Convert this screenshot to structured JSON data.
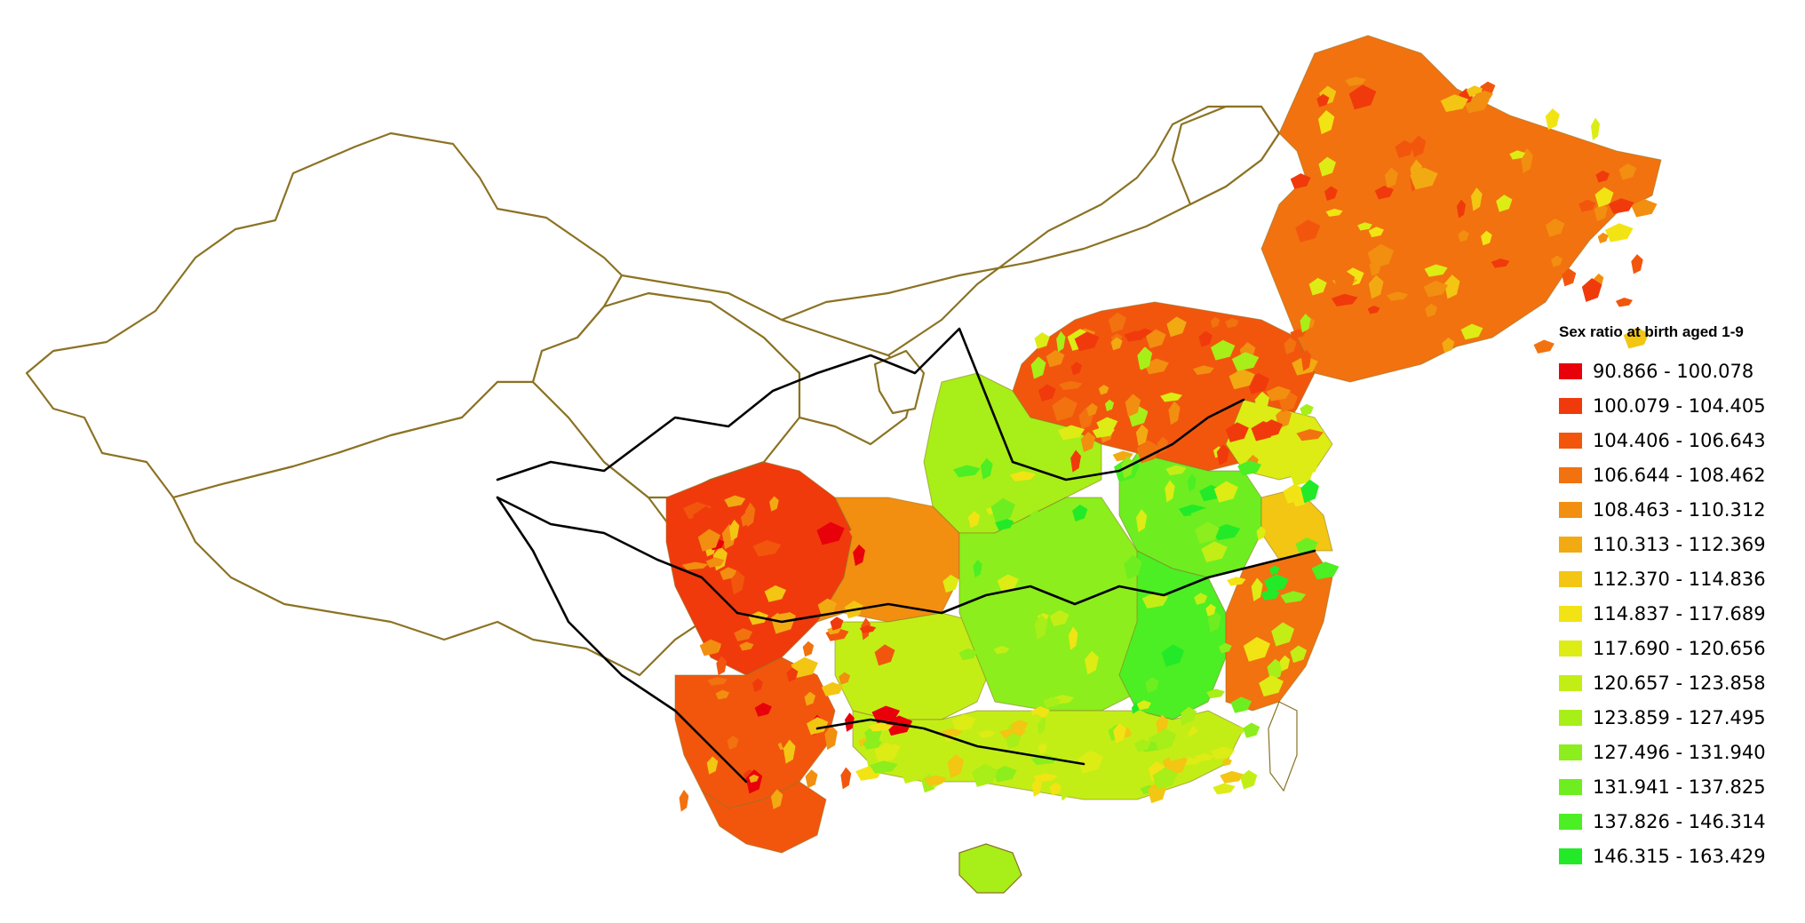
{
  "legend": {
    "title": "Sex ratio at birth aged 1-9",
    "classes": [
      {
        "label": "90.866 - 100.078",
        "color": "#e8000b"
      },
      {
        "label": "100.079 - 104.405",
        "color": "#f03a0c"
      },
      {
        "label": "104.406 - 106.643",
        "color": "#f2560d"
      },
      {
        "label": "106.644 - 108.462",
        "color": "#f2720f"
      },
      {
        "label": "108.463 - 110.312",
        "color": "#f28e10"
      },
      {
        "label": "110.313 - 112.369",
        "color": "#f2aa12"
      },
      {
        "label": "112.370 - 114.836",
        "color": "#f2c613"
      },
      {
        "label": "114.837 - 117.689",
        "color": "#f2e414"
      },
      {
        "label": "117.690 - 120.656",
        "color": "#dcec14"
      },
      {
        "label": "120.657 - 123.858",
        "color": "#c2ee16"
      },
      {
        "label": "123.859 - 127.495",
        "color": "#a8ee18"
      },
      {
        "label": "127.496 - 131.940",
        "color": "#8cee1c"
      },
      {
        "label": "131.941 - 137.825",
        "color": "#6eee20"
      },
      {
        "label": "137.826 - 146.314",
        "color": "#4cee24"
      },
      {
        "label": "146.315 - 163.429",
        "color": "#22ea28"
      }
    ]
  },
  "colors": {
    "boundary_gold": "#8b7324",
    "boundary_black": "#000000",
    "nodata_fill": "#ffffff"
  }
}
